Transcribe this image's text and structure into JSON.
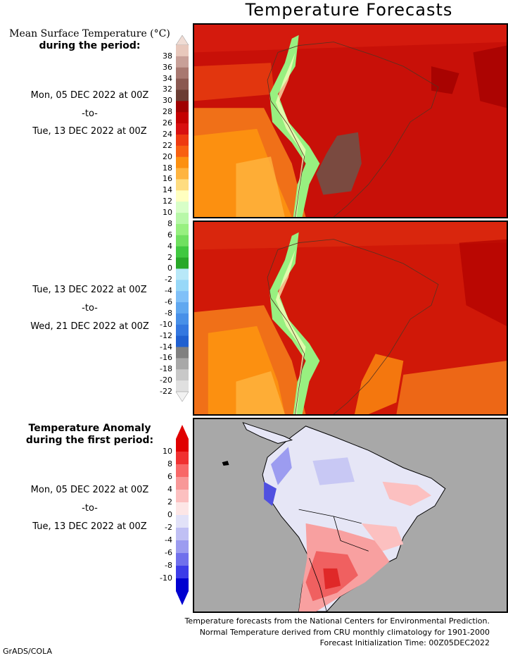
{
  "title": "Temperature Forecasts",
  "temp_legend": {
    "heading_line1": "Mean Surface Temperature (°C)",
    "heading_line2": "during the period:",
    "ticks": [
      "38",
      "36",
      "34",
      "32",
      "30",
      "28",
      "26",
      "24",
      "22",
      "20",
      "18",
      "16",
      "14",
      "12",
      "10",
      "8",
      "6",
      "4",
      "2",
      "0",
      "-2",
      "-4",
      "-6",
      "-8",
      "-10",
      "-12",
      "-14",
      "-16",
      "-18",
      "-20",
      "-22"
    ],
    "colors": [
      "#e8c8bc",
      "#c8a098",
      "#a87870",
      "#8a5850",
      "#6a3c32",
      "#a00000",
      "#c40000",
      "#d81010",
      "#ee3a10",
      "#f86010",
      "#fc9010",
      "#feb440",
      "#fedc80",
      "#ffffc0",
      "#d8ffc8",
      "#b8f8a8",
      "#98f080",
      "#70e060",
      "#40c840",
      "#28a828",
      "#b8e8f8",
      "#98d8f8",
      "#80c0f8",
      "#60a8f0",
      "#4890e8",
      "#3478e0",
      "#2060d0",
      "#808080",
      "#a8a8a8",
      "#c8c8c8",
      "#e0e0e0"
    ]
  },
  "period1": {
    "start": "Mon, 05 DEC 2022 at 00Z",
    "sep": "-to-",
    "end": "Tue, 13 DEC 2022 at 00Z"
  },
  "period2": {
    "start": "Tue, 13 DEC 2022 at 00Z",
    "sep": "-to-",
    "end": "Wed, 21 DEC 2022 at 00Z"
  },
  "anomaly_legend": {
    "heading_line1": "Temperature Anomaly",
    "heading_line2": "during the first period:",
    "ticks": [
      "10",
      "8",
      "6",
      "4",
      "2",
      "0",
      "-2",
      "-4",
      "-6",
      "-8",
      "-10"
    ],
    "colors": [
      "#e00000",
      "#f03030",
      "#f86868",
      "#f89898",
      "#fcc0c0",
      "#fde6e6",
      "#e2e2f8",
      "#c0c0f4",
      "#9c9cf0",
      "#7070ec",
      "#3c3ce8",
      "#0000d0"
    ]
  },
  "period3": {
    "start": "Mon, 05 DEC 2022 at 00Z",
    "sep": "-to-",
    "end": "Tue, 13 DEC 2022 at 00Z"
  },
  "footer": {
    "line1": "Temperature forecasts from the National Centers for Environmental Prediction.",
    "line2": "Normal Temperature derived from CRU monthly climatology for 1901-2000",
    "line3": "Forecast Initialization Time: 00Z05DEC2022"
  },
  "credit": "GrADS/COLA"
}
